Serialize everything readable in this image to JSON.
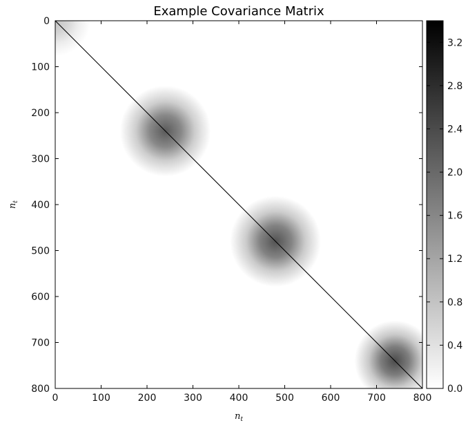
{
  "chart_data": {
    "type": "heatmap",
    "title": "Example Covariance Matrix",
    "xlabel": "n",
    "xlabel_subscript": "t",
    "ylabel": "n",
    "ylabel_subscript": "t",
    "xlim": [
      0,
      800
    ],
    "ylim": [
      800,
      0
    ],
    "y_inverted": true,
    "x_ticks": [
      0,
      100,
      200,
      300,
      400,
      500,
      600,
      700,
      800
    ],
    "y_ticks": [
      0,
      100,
      200,
      300,
      400,
      500,
      600,
      700,
      800
    ],
    "colormap": "gray_r",
    "colorbar": {
      "range": [
        0.0,
        3.4
      ],
      "ticks": [
        "0.0",
        "0.4",
        "0.8",
        "1.2",
        "1.6",
        "2.0",
        "2.4",
        "2.8",
        "3.2"
      ],
      "tick_values": [
        0.0,
        0.4,
        0.8,
        1.2,
        1.6,
        2.0,
        2.4,
        2.8,
        3.2
      ]
    },
    "diagonal": {
      "from": 0,
      "to": 800,
      "value": 3.4
    },
    "blobs": [
      {
        "center": 0,
        "peak_value": 0.8,
        "spread": 35
      },
      {
        "center": 240,
        "peak_value": 2.2,
        "spread": 45
      },
      {
        "center": 480,
        "peak_value": 2.3,
        "spread": 45
      },
      {
        "center": 740,
        "peak_value": 2.4,
        "spread": 40
      }
    ],
    "grid": false,
    "legend": "none"
  },
  "colors": {
    "background": "#ffffff",
    "max": "#000000",
    "min": "#ffffff"
  }
}
